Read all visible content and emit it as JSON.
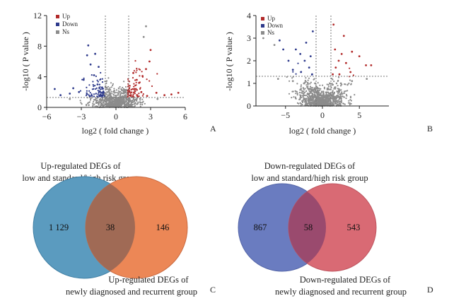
{
  "chart_data": [
    {
      "type": "scatter",
      "panel": "A",
      "title": "",
      "xlabel": "log2 ( fold change )",
      "ylabel": "-log10 ( P value )",
      "xlim": [
        -6,
        6
      ],
      "ylim": [
        0,
        12
      ],
      "xticks": [
        -6,
        -3,
        0,
        3,
        6
      ],
      "yticks": [
        0,
        4,
        8,
        12
      ],
      "fc_threshold": 1,
      "p_threshold": 1.3,
      "legend": [
        "Up",
        "Down",
        "Ns"
      ],
      "colors": {
        "Up": "#b22a2a",
        "Down": "#2e3a8c",
        "Ns": "#8c8c8c"
      },
      "sample_points": {
        "Up": [
          [
            1.3,
            1.6
          ],
          [
            1.6,
            2.4
          ],
          [
            2.0,
            3.2
          ],
          [
            2.3,
            4.1
          ],
          [
            2.6,
            5.0
          ],
          [
            2.9,
            6.0
          ],
          [
            3.0,
            7.5
          ],
          [
            2.7,
            1.5
          ],
          [
            3.5,
            1.9
          ],
          [
            4.2,
            1.6
          ],
          [
            4.8,
            1.7
          ],
          [
            5.4,
            1.9
          ],
          [
            1.5,
            4.5
          ],
          [
            1.8,
            3.6
          ],
          [
            2.2,
            2.0
          ]
        ],
        "Down": [
          [
            -1.3,
            1.6
          ],
          [
            -1.6,
            3.0
          ],
          [
            -1.9,
            4.2
          ],
          [
            -2.2,
            5.6
          ],
          [
            -2.5,
            6.8
          ],
          [
            -2.4,
            8.1
          ],
          [
            -3.2,
            2.0
          ],
          [
            -4.0,
            1.8
          ],
          [
            -4.8,
            1.6
          ],
          [
            -5.3,
            2.4
          ],
          [
            -1.5,
            5.3
          ],
          [
            -1.8,
            7.0
          ],
          [
            -2.8,
            3.6
          ],
          [
            -3.7,
            2.5
          ],
          [
            -1.2,
            2.6
          ]
        ],
        "Ns": [
          [
            0,
            0.2
          ],
          [
            0.3,
            0.7
          ],
          [
            -0.3,
            0.8
          ],
          [
            0.6,
            1.0
          ],
          [
            -0.6,
            1.1
          ],
          [
            0.9,
            2.2
          ],
          [
            -0.9,
            2.6
          ],
          [
            2.4,
            9.2
          ],
          [
            2.6,
            10.6
          ],
          [
            1.8,
            1.1
          ],
          [
            -1.8,
            1.0
          ],
          [
            3.6,
            1.1
          ],
          [
            -4.0,
            1.1
          ]
        ]
      }
    },
    {
      "type": "scatter",
      "panel": "B",
      "title": "",
      "xlabel": "log2 ( fold change )",
      "ylabel": "-log10 ( P value )",
      "xlim": [
        -9,
        9
      ],
      "ylim": [
        0,
        4
      ],
      "xticks": [
        -5,
        0,
        5
      ],
      "yticks": [
        0,
        1,
        2,
        3,
        4
      ],
      "fc_threshold": 1,
      "p_threshold": 1.3,
      "legend": [
        "Up",
        "Down",
        "Ns"
      ],
      "colors": {
        "Up": "#b22a2a",
        "Down": "#2e3a8c",
        "Ns": "#8c8c8c"
      },
      "sample_points": {
        "Up": [
          [
            1.4,
            1.4
          ],
          [
            1.8,
            1.7
          ],
          [
            2.2,
            2.0
          ],
          [
            2.6,
            2.3
          ],
          [
            3.2,
            1.9
          ],
          [
            4.0,
            2.4
          ],
          [
            5.0,
            2.2
          ],
          [
            5.9,
            1.8
          ],
          [
            6.6,
            1.8
          ],
          [
            1.7,
            2.5
          ],
          [
            2.9,
            3.1
          ],
          [
            1.5,
            3.6
          ],
          [
            3.8,
            1.5
          ],
          [
            2.3,
            1.4
          ]
        ],
        "Down": [
          [
            -1.4,
            1.4
          ],
          [
            -1.8,
            1.7
          ],
          [
            -2.4,
            2.0
          ],
          [
            -3.0,
            2.3
          ],
          [
            -3.6,
            2.5
          ],
          [
            -4.6,
            2.0
          ],
          [
            -5.3,
            2.5
          ],
          [
            -5.8,
            2.9
          ],
          [
            -2.2,
            2.8
          ],
          [
            -1.6,
            2.2
          ],
          [
            -4.0,
            1.6
          ],
          [
            -2.9,
            1.5
          ],
          [
            -1.3,
            3.3
          ]
        ],
        "Ns": [
          [
            0,
            0.2
          ],
          [
            0.5,
            0.6
          ],
          [
            -0.5,
            0.6
          ],
          [
            1.0,
            1.0
          ],
          [
            -1.0,
            1.0
          ],
          [
            2.5,
            1.0
          ],
          [
            -2.5,
            1.0
          ],
          [
            4.0,
            1.1
          ],
          [
            -4.0,
            1.1
          ],
          [
            6.0,
            1.2
          ],
          [
            -6.0,
            1.2
          ],
          [
            -8.0,
            3.0
          ],
          [
            -6.5,
            2.7
          ]
        ]
      }
    },
    {
      "type": "venn",
      "panel": "C",
      "sets": [
        {
          "label_lines": [
            "Up-regulated DEGs of",
            "low and standard/high risk group"
          ],
          "only": "1 129",
          "color": "#5b9bbf"
        },
        {
          "label_lines": [
            "Up-regulated DEGs of",
            "newly diagnosed and recurrent group"
          ],
          "only": "146",
          "color": "#ec8756"
        }
      ],
      "intersection": "38",
      "overlap_color": "#a06a55"
    },
    {
      "type": "venn",
      "panel": "D",
      "sets": [
        {
          "label_lines": [
            "Down-regulated DEGs of",
            "low and standard/high risk group"
          ],
          "only": "867",
          "color": "#6a7cc0"
        },
        {
          "label_lines": [
            "Down-regulated DEGs of",
            "newly diagnosed and recurrent group"
          ],
          "only": "543",
          "color": "#d96a74"
        }
      ],
      "intersection": "58",
      "overlap_color": "#9a4a6e"
    }
  ]
}
